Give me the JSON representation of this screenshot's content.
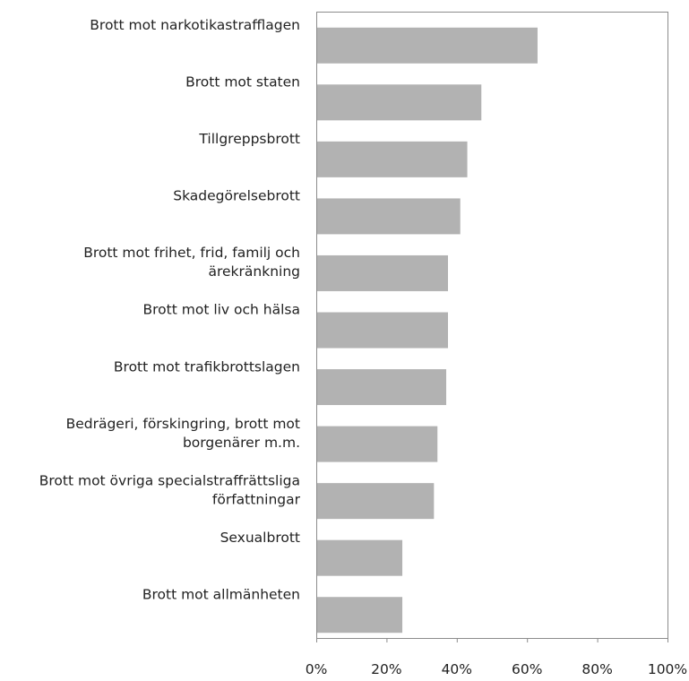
{
  "chart_data": {
    "type": "bar",
    "orientation": "horizontal",
    "categories": [
      [
        "Brott mot narkotikastrafflagen"
      ],
      [
        "Brott mot staten"
      ],
      [
        "Tillgreppsbrott"
      ],
      [
        "Skadegörelsebrott"
      ],
      [
        "Brott mot frihet, frid, familj och",
        "ärekränkning"
      ],
      [
        "Brott mot liv och hälsa"
      ],
      [
        "Brott mot trafikbrottslagen"
      ],
      [
        "Bedrägeri, förskingring, brott mot",
        "borgenärer m.m."
      ],
      [
        "Brott mot övriga specialstraffrättsliga",
        "författningar"
      ],
      [
        "Sexualbrott"
      ],
      [
        "Brott mot allmänheten"
      ]
    ],
    "values": [
      63,
      47,
      43,
      41,
      37.5,
      37.5,
      37,
      34.5,
      33.5,
      24.5,
      24.5
    ],
    "xlim": [
      0,
      100
    ],
    "xticks": [
      "0%",
      "20%",
      "40%",
      "60%",
      "80%",
      "100%"
    ],
    "bar_color": "#b2b2b2",
    "grid": false,
    "title": "",
    "xlabel": "",
    "ylabel": ""
  }
}
